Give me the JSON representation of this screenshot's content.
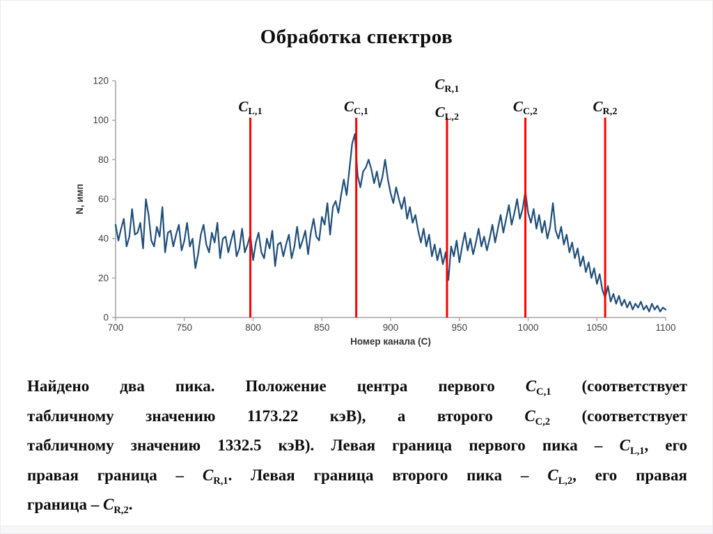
{
  "slide": {
    "title": "Обработка спектров"
  },
  "chart_data": {
    "type": "line",
    "title": "",
    "xlabel": "Номер канала (С)",
    "ylabel": "N, имп",
    "xlim": [
      700,
      1100
    ],
    "ylim": [
      0,
      120
    ],
    "xticks": [
      700,
      750,
      800,
      850,
      900,
      950,
      1000,
      1050,
      1100
    ],
    "yticks": [
      0,
      20,
      40,
      60,
      80,
      100,
      120
    ],
    "grid": false,
    "legend": "none",
    "axis_color": "#a6a6a6",
    "tick_label_color": "#3f3f3f",
    "axis_title_color": "#333333",
    "series": [
      {
        "name": "spectrum",
        "color": "#1f4e79",
        "x_start": 700,
        "x_step": 2,
        "values": [
          47,
          39,
          45,
          50,
          36,
          41,
          55,
          42,
          43,
          48,
          35,
          60,
          52,
          39,
          36,
          46,
          41,
          56,
          33,
          43,
          44,
          36,
          42,
          47,
          34,
          39,
          48,
          36,
          40,
          25,
          32,
          42,
          47,
          37,
          33,
          43,
          38,
          48,
          30,
          40,
          41,
          33,
          39,
          44,
          31,
          35,
          45,
          33,
          37,
          42,
          29,
          38,
          43,
          33,
          30,
          40,
          35,
          44,
          26,
          37,
          38,
          31,
          37,
          42,
          30,
          36,
          46,
          35,
          39,
          44,
          32,
          43,
          50,
          41,
          39,
          51,
          47,
          58,
          42,
          56,
          59,
          53,
          62,
          70,
          62,
          75,
          88,
          93,
          72,
          66,
          74,
          76,
          80,
          75,
          68,
          74,
          66,
          71,
          80,
          70,
          63,
          58,
          66,
          60,
          55,
          61,
          50,
          56,
          48,
          52,
          44,
          38,
          45,
          36,
          42,
          31,
          37,
          29,
          35,
          27,
          33,
          19,
          36,
          31,
          39,
          28,
          36,
          43,
          34,
          40,
          32,
          38,
          45,
          36,
          41,
          34,
          40,
          47,
          38,
          45,
          52,
          43,
          50,
          57,
          47,
          53,
          60,
          50,
          55,
          64,
          53,
          48,
          55,
          45,
          52,
          43,
          49,
          40,
          46,
          58,
          44,
          40,
          46,
          37,
          42,
          33,
          38,
          30,
          35,
          26,
          31,
          23,
          28,
          20,
          25,
          17,
          22,
          14,
          10,
          16,
          8,
          12,
          7,
          11,
          6,
          9,
          5,
          8,
          4,
          7,
          5,
          8,
          4,
          6,
          3,
          7,
          4,
          6,
          3,
          5,
          4
        ]
      }
    ],
    "markers": {
      "color": "#ff0000",
      "items": [
        {
          "channel": 798,
          "labels": [
            {
              "main": "C",
              "sub": "L,1"
            }
          ]
        },
        {
          "channel": 875,
          "labels": [
            {
              "main": "C",
              "sub": "C,1"
            }
          ]
        },
        {
          "channel": 941,
          "labels": [
            {
              "main": "C",
              "sub": "R,1"
            },
            {
              "main": "C",
              "sub": "L,2"
            }
          ]
        },
        {
          "channel": 998,
          "labels": [
            {
              "main": "C",
              "sub": "C,2"
            }
          ]
        },
        {
          "channel": 1056,
          "labels": [
            {
              "main": "C",
              "sub": "R,2"
            }
          ]
        }
      ]
    }
  },
  "paragraph": {
    "lines": [
      {
        "justify": true,
        "tokens": [
          {
            "t": "Найдено два пика. Положение центра первого "
          },
          {
            "m": "C",
            "s": "C,1"
          },
          {
            "t": " (соответствует"
          }
        ]
      },
      {
        "justify": true,
        "tokens": [
          {
            "t": "табличному значению 1173.22 кэВ), а второго "
          },
          {
            "m": "C",
            "s": "C,2"
          },
          {
            "t": " (соответствует"
          }
        ]
      },
      {
        "justify": true,
        "tokens": [
          {
            "t": "табличному значению 1332.5 кэВ). Левая граница первого пика – "
          },
          {
            "m": "C",
            "s": "L,1"
          },
          {
            "t": ", его"
          }
        ]
      },
      {
        "justify": true,
        "tokens": [
          {
            "t": "правая граница – "
          },
          {
            "m": "C",
            "s": "R,1"
          },
          {
            "t": ". Левая граница второго пика – "
          },
          {
            "m": "C",
            "s": "L,2"
          },
          {
            "t": ", его правая"
          }
        ]
      },
      {
        "justify": false,
        "tokens": [
          {
            "t": "граница – "
          },
          {
            "m": "C",
            "s": "R,2"
          },
          {
            "t": "."
          }
        ]
      }
    ]
  }
}
